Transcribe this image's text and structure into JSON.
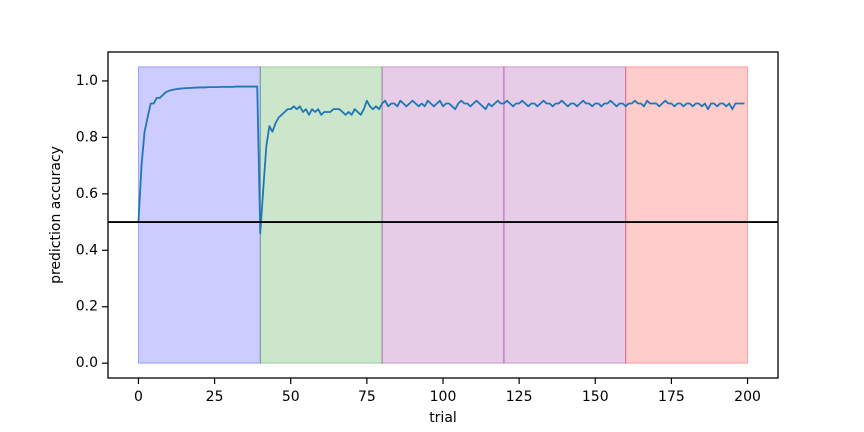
{
  "chart_data": {
    "type": "line",
    "xlabel": "trial",
    "ylabel": "prediction accuracy",
    "xlim": [
      -10,
      210
    ],
    "ylim": [
      -0.0525,
      1.1025
    ],
    "xticks": [
      0,
      25,
      50,
      75,
      100,
      125,
      150,
      175,
      200
    ],
    "yticks": [
      {
        "value": 0,
        "label": "0.0"
      },
      0.2,
      0.4,
      0.6,
      0.8,
      {
        "value": 1,
        "label": "1.0"
      }
    ],
    "color": "#1f77b4",
    "spans": [
      {
        "start": 0,
        "end": 40,
        "color": "#0000ff"
      },
      {
        "start": 40,
        "end": 80,
        "color": "#008000"
      },
      {
        "start": 80,
        "end": 120,
        "color": "#800080"
      },
      {
        "start": 120,
        "end": 160,
        "color": "#800080"
      },
      {
        "start": 160,
        "end": 200,
        "color": "#ff0000"
      }
    ],
    "span_range": [
      0,
      1.05
    ],
    "span_alpha": 0.2,
    "hline": {
      "y": 0.5,
      "color": "#000000"
    },
    "x": [
      0,
      1,
      2,
      3,
      4,
      5,
      6,
      7,
      8,
      9,
      10,
      11,
      12,
      13,
      14,
      15,
      16,
      17,
      18,
      19,
      20,
      21,
      22,
      23,
      24,
      25,
      26,
      27,
      28,
      29,
      30,
      31,
      32,
      33,
      34,
      35,
      36,
      37,
      38,
      39,
      40,
      41,
      42,
      43,
      44,
      45,
      46,
      47,
      48,
      49,
      50,
      51,
      52,
      53,
      54,
      55,
      56,
      57,
      58,
      59,
      60,
      61,
      62,
      63,
      64,
      65,
      66,
      67,
      68,
      69,
      70,
      71,
      72,
      73,
      74,
      75,
      76,
      77,
      78,
      79,
      80,
      81,
      82,
      83,
      84,
      85,
      86,
      87,
      88,
      89,
      90,
      91,
      92,
      93,
      94,
      95,
      96,
      97,
      98,
      99,
      100,
      101,
      102,
      103,
      104,
      105,
      106,
      107,
      108,
      109,
      110,
      111,
      112,
      113,
      114,
      115,
      116,
      117,
      118,
      119,
      120,
      121,
      122,
      123,
      124,
      125,
      126,
      127,
      128,
      129,
      130,
      131,
      132,
      133,
      134,
      135,
      136,
      137,
      138,
      139,
      140,
      141,
      142,
      143,
      144,
      145,
      146,
      147,
      148,
      149,
      150,
      151,
      152,
      153,
      154,
      155,
      156,
      157,
      158,
      159,
      160,
      161,
      162,
      163,
      164,
      165,
      166,
      167,
      168,
      169,
      170,
      171,
      172,
      173,
      174,
      175,
      176,
      177,
      178,
      179,
      180,
      181,
      182,
      183,
      184,
      185,
      186,
      187,
      188,
      189,
      190,
      191,
      192,
      193,
      194,
      195,
      196,
      197,
      198,
      199
    ],
    "values": [
      0.5,
      0.7,
      0.82,
      0.87,
      0.92,
      0.92,
      0.94,
      0.94,
      0.95,
      0.96,
      0.965,
      0.968,
      0.97,
      0.972,
      0.973,
      0.974,
      0.975,
      0.975,
      0.976,
      0.976,
      0.977,
      0.977,
      0.977,
      0.978,
      0.978,
      0.978,
      0.978,
      0.979,
      0.979,
      0.979,
      0.979,
      0.979,
      0.98,
      0.98,
      0.98,
      0.98,
      0.98,
      0.98,
      0.98,
      0.98,
      0.46,
      0.62,
      0.77,
      0.84,
      0.82,
      0.85,
      0.87,
      0.88,
      0.89,
      0.9,
      0.9,
      0.91,
      0.9,
      0.91,
      0.89,
      0.9,
      0.88,
      0.9,
      0.89,
      0.9,
      0.88,
      0.89,
      0.89,
      0.89,
      0.9,
      0.9,
      0.9,
      0.89,
      0.88,
      0.89,
      0.88,
      0.9,
      0.89,
      0.88,
      0.9,
      0.93,
      0.91,
      0.9,
      0.91,
      0.9,
      0.92,
      0.93,
      0.91,
      0.92,
      0.92,
      0.91,
      0.93,
      0.92,
      0.91,
      0.92,
      0.93,
      0.92,
      0.91,
      0.92,
      0.91,
      0.93,
      0.92,
      0.91,
      0.92,
      0.93,
      0.91,
      0.92,
      0.92,
      0.91,
      0.9,
      0.92,
      0.93,
      0.92,
      0.92,
      0.91,
      0.92,
      0.93,
      0.92,
      0.91,
      0.9,
      0.92,
      0.91,
      0.92,
      0.93,
      0.92,
      0.92,
      0.93,
      0.92,
      0.91,
      0.92,
      0.92,
      0.93,
      0.92,
      0.91,
      0.92,
      0.92,
      0.91,
      0.92,
      0.93,
      0.92,
      0.92,
      0.91,
      0.92,
      0.92,
      0.93,
      0.92,
      0.91,
      0.92,
      0.92,
      0.91,
      0.92,
      0.93,
      0.92,
      0.92,
      0.91,
      0.92,
      0.92,
      0.91,
      0.92,
      0.92,
      0.93,
      0.92,
      0.91,
      0.92,
      0.92,
      0.91,
      0.92,
      0.92,
      0.93,
      0.92,
      0.92,
      0.91,
      0.93,
      0.92,
      0.92,
      0.92,
      0.91,
      0.92,
      0.93,
      0.92,
      0.92,
      0.91,
      0.92,
      0.92,
      0.91,
      0.92,
      0.92,
      0.91,
      0.92,
      0.92,
      0.91,
      0.92,
      0.9,
      0.92,
      0.92,
      0.91,
      0.92,
      0.92,
      0.91,
      0.92,
      0.9,
      0.92,
      0.92,
      0.92,
      0.92
    ]
  }
}
